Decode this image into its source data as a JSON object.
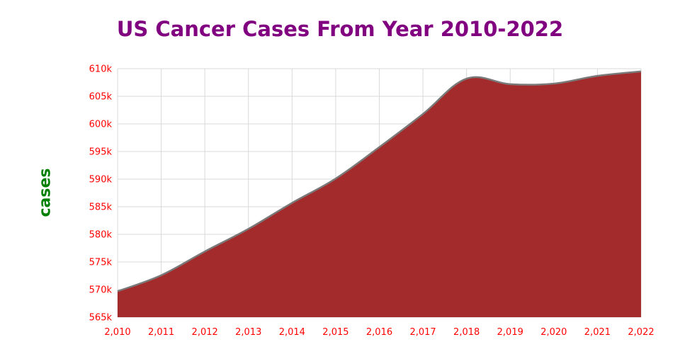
{
  "chart_data": {
    "type": "area",
    "title": "US Cancer Cases From Year 2010-2022",
    "xlabel": "",
    "ylabel": "cases",
    "x": [
      2010,
      2011,
      2012,
      2013,
      2014,
      2015,
      2016,
      2017,
      2018,
      2019,
      2020,
      2021,
      2022
    ],
    "x_tick_labels": [
      "2,010",
      "2,011",
      "2,012",
      "2,013",
      "2,014",
      "2,015",
      "2,016",
      "2,017",
      "2,018",
      "2,019",
      "2,020",
      "2,021",
      "2,022"
    ],
    "series": [
      {
        "values": [
          569700,
          572600,
          576900,
          581000,
          585700,
          590100,
          595800,
          601800,
          608200,
          607200,
          607300,
          608700,
          609500
        ]
      }
    ],
    "y_ticks": [
      565000,
      570000,
      575000,
      580000,
      585000,
      590000,
      595000,
      600000,
      605000,
      610000
    ],
    "y_tick_labels": [
      "565k",
      "570k",
      "575k",
      "580k",
      "585k",
      "590k",
      "595k",
      "600k",
      "605k",
      "610k"
    ],
    "ylim": [
      565000,
      610000
    ],
    "xlim": [
      2010,
      2022
    ],
    "grid": true,
    "legend": "none",
    "colors": {
      "fill": "#a32b2b",
      "line": "#7a7a7a",
      "grid": "#d9d9d9",
      "tick_labels": "#ff0000",
      "title": "#800080",
      "ylabel": "#008000"
    }
  }
}
